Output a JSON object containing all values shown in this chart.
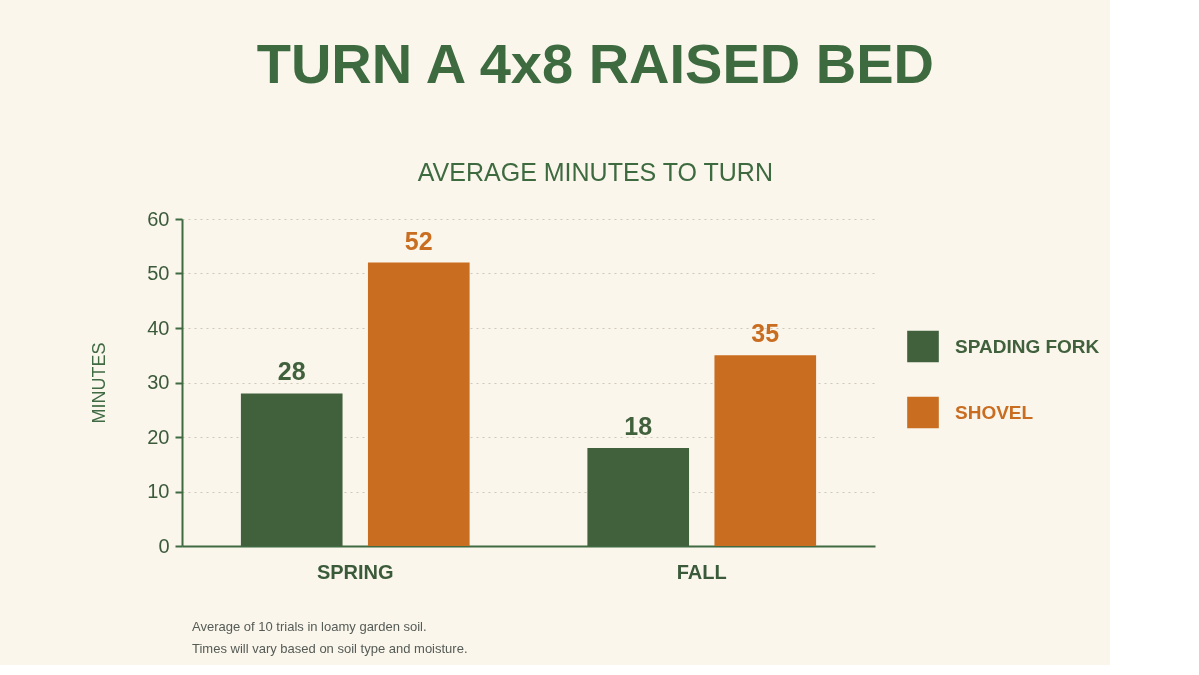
{
  "chart_data": {
    "type": "bar",
    "title": "TURN A 4x8 RAISED BED",
    "subtitle": "AVERAGE MINUTES TO TURN",
    "ylabel": "MINUTES",
    "categories": [
      "SPRING",
      "FALL"
    ],
    "series": [
      {
        "name": "SPADING FORK",
        "color": "#41603c",
        "values": [
          28,
          18
        ]
      },
      {
        "name": "SHOVEL",
        "color": "#c96d21",
        "values": [
          52,
          35
        ]
      }
    ],
    "ylim": [
      0,
      60
    ],
    "yticks": [
      0,
      10,
      20,
      30,
      40,
      50,
      60
    ],
    "grid": "y",
    "legend": "right",
    "data_labels": true,
    "annotations": [
      "Average of 10 trials in loamy garden soil.",
      "Times will vary based on soil type and moisture."
    ]
  }
}
